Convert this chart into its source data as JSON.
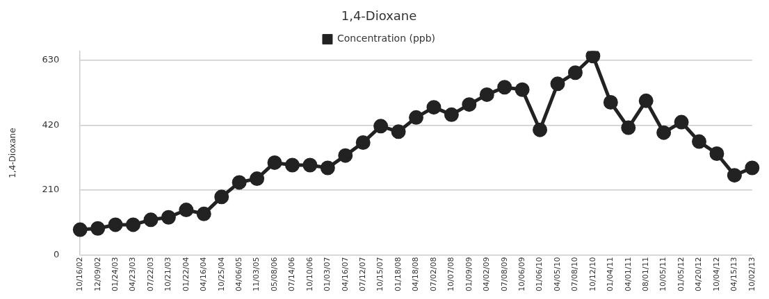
{
  "chart_data": {
    "type": "line",
    "title": "1,4-Dioxane",
    "ylabel": "1,4-Dioxane",
    "categories": [
      "10/16/02",
      "12/09/02",
      "01/24/03",
      "04/23/03",
      "07/22/03",
      "10/21/03",
      "01/22/04",
      "04/16/04",
      "10/25/04",
      "04/06/05",
      "11/03/05",
      "05/08/06",
      "07/14/06",
      "10/10/06",
      "01/03/07",
      "04/16/07",
      "07/12/07",
      "10/15/07",
      "01/18/08",
      "04/18/08",
      "07/02/08",
      "10/07/08",
      "01/09/09",
      "04/02/09",
      "07/08/09",
      "10/06/09",
      "01/06/10",
      "04/05/10",
      "07/08/10",
      "10/12/10",
      "01/04/11",
      "04/01/11",
      "08/01/11",
      "10/05/11",
      "01/05/12",
      "04/20/12",
      "10/04/12",
      "04/15/13",
      "10/02/13"
    ],
    "series": [
      {
        "name": "Concentration (ppb)",
        "color": "#222222",
        "values": [
          82,
          86,
          98,
          98,
          114,
          122,
          146,
          133,
          188,
          235,
          247,
          299,
          291,
          291,
          282,
          322,
          364,
          417,
          399,
          445,
          478,
          454,
          487,
          519,
          543,
          535,
          405,
          554,
          590,
          644,
          494,
          412,
          499,
          396,
          430,
          367,
          328,
          258,
          282
        ]
      }
    ],
    "ylim": [
      0,
      660
    ],
    "yticks": [
      0,
      210,
      420,
      630
    ],
    "grid": "y",
    "legend": "top",
    "marker": "circle",
    "line_style": "solid"
  }
}
